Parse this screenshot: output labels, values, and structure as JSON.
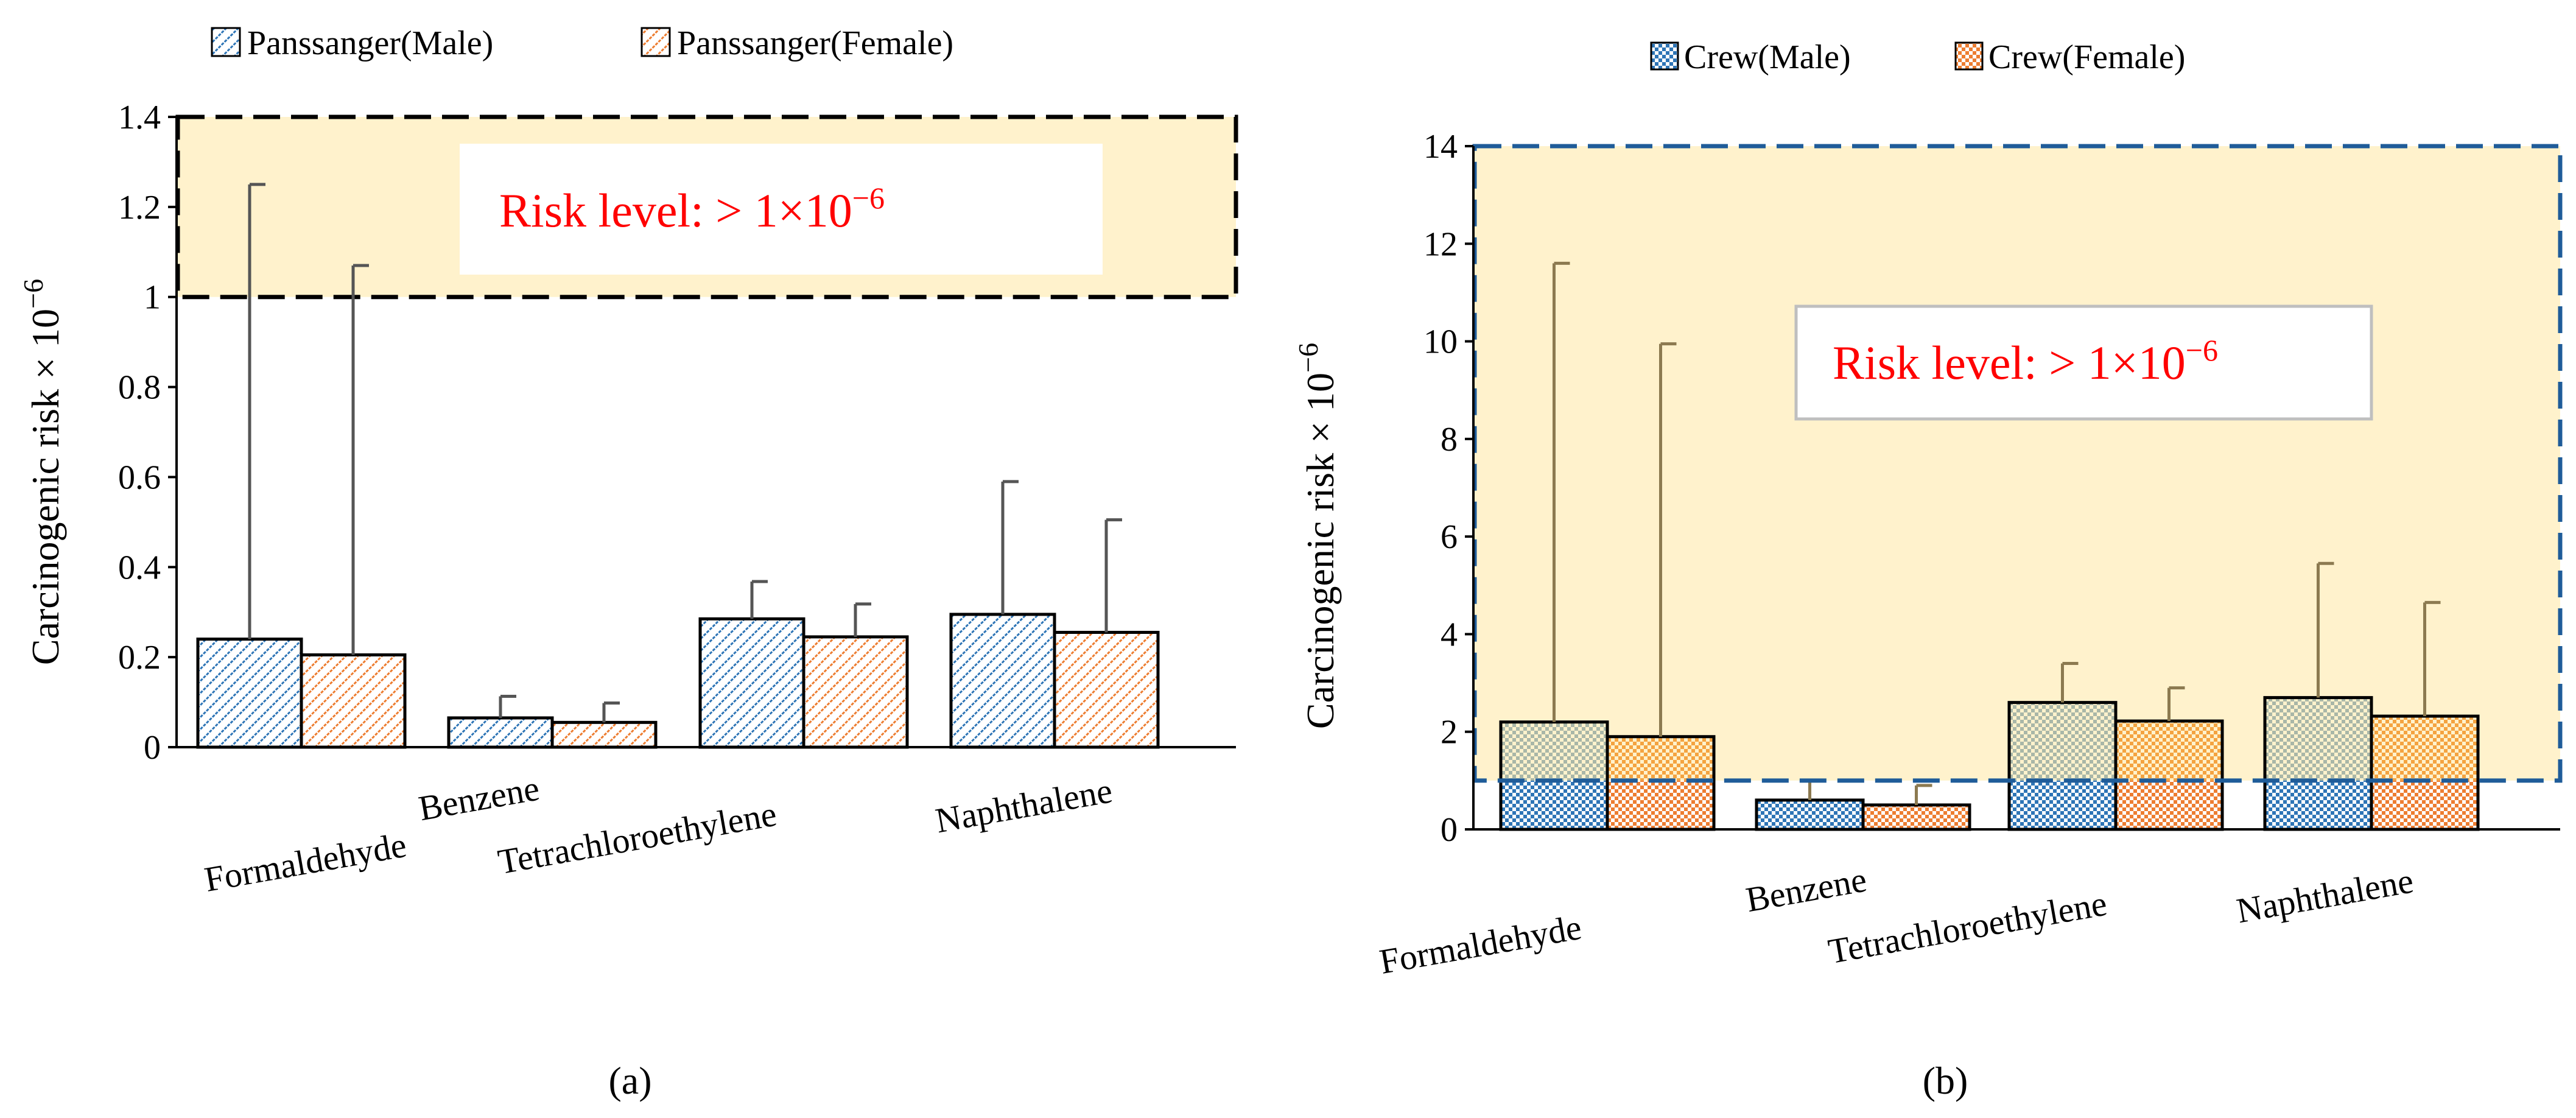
{
  "chart_data": [
    {
      "panel": "a",
      "type": "bar",
      "panel_label": "(a)",
      "ylabel": "Carcinogenic risk × 10",
      "ylabel_exp": "−6",
      "ylim": [
        0,
        1.4
      ],
      "yticks": [
        "0",
        "0.2",
        "0.4",
        "0.6",
        "0.8",
        "1",
        "1.2",
        "1.4"
      ],
      "ytick_values": [
        0,
        0.2,
        0.4,
        0.6,
        0.8,
        1.0,
        1.2,
        1.4
      ],
      "categories": [
        "Formaldehyde",
        "Benzene",
        "Tetrachloroethylene",
        "Naphthalene"
      ],
      "series": [
        {
          "name": "Panssanger(Male)",
          "color": "#2e75b6",
          "values": [
            0.24,
            0.065,
            0.285,
            0.295
          ],
          "upper": [
            1.25,
            0.113,
            0.368,
            0.59
          ]
        },
        {
          "name": "Panssanger(Female)",
          "color": "#ed7d31",
          "values": [
            0.205,
            0.055,
            0.245,
            0.255
          ],
          "upper": [
            1.07,
            0.098,
            0.318,
            0.505
          ]
        }
      ],
      "risk_region": {
        "from": 1.0,
        "to": 1.4,
        "text": "Risk level: > 1×10",
        "text_exp": "−6"
      }
    },
    {
      "panel": "b",
      "type": "bar",
      "panel_label": "(b)",
      "ylabel": "Carcinogenic risk × 10",
      "ylabel_exp": "−6",
      "ylim": [
        0,
        14
      ],
      "yticks": [
        "0",
        "2",
        "4",
        "6",
        "8",
        "10",
        "12",
        "14"
      ],
      "ytick_values": [
        0,
        2,
        4,
        6,
        8,
        10,
        12,
        14
      ],
      "categories": [
        "Formaldehyde",
        "Benzene",
        "Tetrachloroethylene",
        "Naphthalene"
      ],
      "series": [
        {
          "name": "Crew(Male)",
          "color": "#2e75b6",
          "values": [
            2.2,
            0.6,
            2.6,
            2.7
          ],
          "upper": [
            11.6,
            1.0,
            3.4,
            5.45
          ]
        },
        {
          "name": "Crew(Female)",
          "color": "#ed7d31",
          "values": [
            1.9,
            0.5,
            2.22,
            2.32
          ],
          "upper": [
            9.95,
            0.9,
            2.9,
            4.65
          ]
        }
      ],
      "risk_region": {
        "from": 1.0,
        "to": 14,
        "text": "Risk level: > 1×10",
        "text_exp": "−6"
      }
    }
  ]
}
